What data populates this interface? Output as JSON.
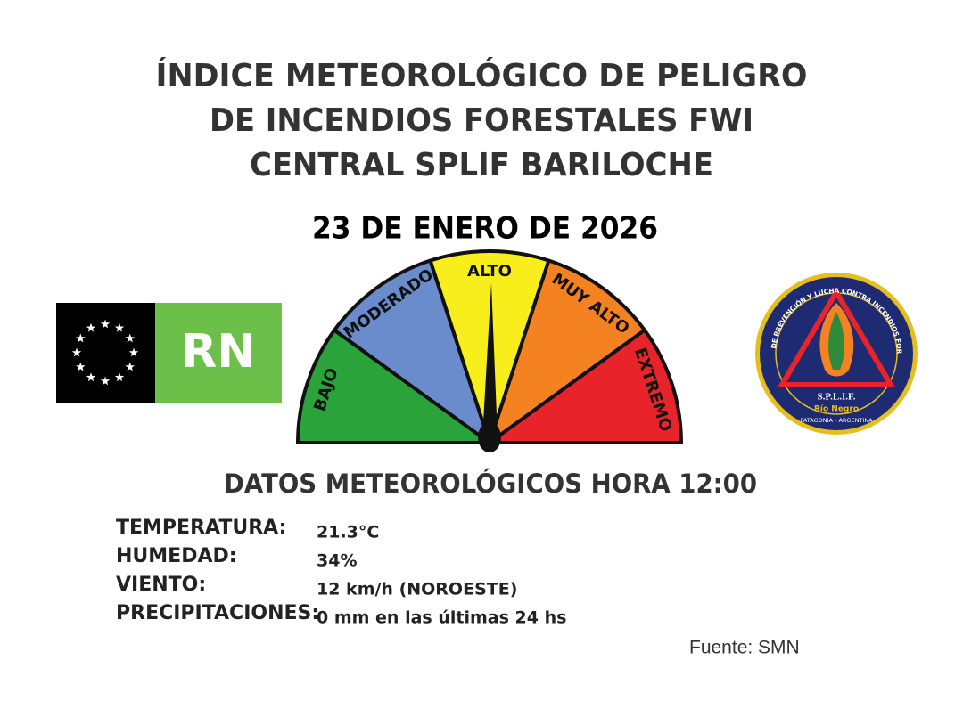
{
  "header": {
    "title_lines": [
      "ÍNDICE METEOROLÓGICO DE PELIGRO",
      "DE INCENDIOS FORESTALES FWI",
      "CENTRAL SPLIF BARILOCHE"
    ],
    "date": "23 DE ENERO DE 2026"
  },
  "left_logo": {
    "text": "RN"
  },
  "gauge": {
    "levels": [
      "BAJO",
      "MODERADO",
      "ALTO",
      "MUY ALTO",
      "EXTREMO"
    ]
  },
  "right_logo": {
    "ring_text": "SERVICIO DE PREVENCIÓN Y LUCHA CONTRA INCENDIOS FORESTALES",
    "name": "S.P.L.I.F.",
    "province": "Río Negro",
    "region": "PATAGONIA - ARGENTINA"
  },
  "data_section": {
    "heading": "DATOS METEOROLÓGICOS HORA 12:00",
    "rows": [
      [
        "TEMPERATURA:",
        "21.3°C"
      ],
      [
        "HUMEDAD:",
        "34%"
      ],
      [
        "VIENTO:",
        "12 km/h (NOROESTE)"
      ],
      [
        "PRECIPITACIONES:",
        "0 mm en las últimas 24 hs"
      ]
    ]
  },
  "source": "Fuente: SMN"
}
